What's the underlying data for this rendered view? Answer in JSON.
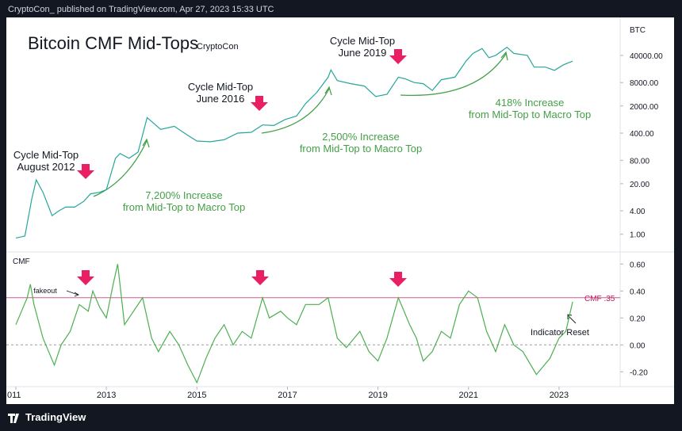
{
  "header": {
    "text": "CryptoCon_ published on TradingView.com, Apr 27, 2023 15:33 UTC"
  },
  "footer": {
    "logo": "TradingView"
  },
  "chart_data": [
    {
      "type": "line",
      "title": "Bitcoin CMF Mid-Tops",
      "subtitle": "CryptoCon",
      "y_label": "BTC",
      "log_scale": true,
      "grid": false,
      "color": "#26a69a",
      "xlim": [
        2010.79,
        2024.35
      ],
      "ylim": [
        0.35,
        380000
      ],
      "yticks": [
        {
          "value": 1,
          "label": "1.00"
        },
        {
          "value": 4,
          "label": "4.00"
        },
        {
          "value": 20,
          "label": "20.00"
        },
        {
          "value": 80,
          "label": "80.00"
        },
        {
          "value": 400,
          "label": "400.00"
        },
        {
          "value": 2000,
          "label": "2000.00"
        },
        {
          "value": 8000,
          "label": "8000.00"
        },
        {
          "value": 40000,
          "label": "40000.00"
        }
      ],
      "x": [
        2011.0,
        2011.2,
        2011.35,
        2011.45,
        2011.6,
        2011.8,
        2011.95,
        2012.1,
        2012.3,
        2012.5,
        2012.65,
        2012.85,
        2013.0,
        2013.2,
        2013.3,
        2013.5,
        2013.7,
        2013.9,
        2014.0,
        2014.2,
        2014.5,
        2014.8,
        2015.0,
        2015.3,
        2015.6,
        2015.9,
        2016.2,
        2016.45,
        2016.7,
        2016.95,
        2017.2,
        2017.4,
        2017.65,
        2017.9,
        2017.96,
        2018.1,
        2018.4,
        2018.7,
        2018.95,
        2019.2,
        2019.45,
        2019.6,
        2019.8,
        2020.0,
        2020.2,
        2020.4,
        2020.7,
        2020.95,
        2021.1,
        2021.3,
        2021.45,
        2021.6,
        2021.85,
        2022.0,
        2022.3,
        2022.45,
        2022.7,
        2022.9,
        2023.1,
        2023.3
      ],
      "values": [
        0.8,
        0.9,
        8,
        25,
        12,
        3,
        4,
        5,
        5,
        7,
        11,
        12,
        14,
        90,
        120,
        90,
        130,
        1000,
        800,
        500,
        600,
        350,
        250,
        240,
        270,
        400,
        420,
        650,
        630,
        900,
        1100,
        2300,
        4500,
        11000,
        17000,
        9000,
        7500,
        6500,
        3500,
        4000,
        11000,
        10000,
        8000,
        7500,
        5000,
        9500,
        11000,
        29000,
        45000,
        60000,
        35000,
        40000,
        65000,
        45000,
        40000,
        20000,
        20000,
        16500,
        23000,
        28500
      ],
      "annotations": [
        {
          "lines": [
            "Cycle Mid-Top",
            "August 2012"
          ],
          "color": "#131722"
        },
        {
          "lines": [
            "7,200% Increase",
            "from Mid-Top to Macro Top"
          ],
          "color": "#43a047"
        },
        {
          "lines": [
            "Cycle Mid-Top",
            "June 2016"
          ],
          "color": "#131722"
        },
        {
          "lines": [
            "2,500% Increase",
            "from Mid-Top to Macro Top"
          ],
          "color": "#43a047"
        },
        {
          "lines": [
            "Cycle Mid-Top",
            "June 2019"
          ],
          "color": "#131722"
        },
        {
          "lines": [
            "418% Increase",
            "from Mid-Top to Macro Top"
          ],
          "color": "#43a047"
        }
      ]
    },
    {
      "type": "line",
      "title": "CMF",
      "grid": false,
      "color": "#4caf50",
      "xlim": [
        2010.79,
        2024.35
      ],
      "ylim": [
        -0.31,
        0.69
      ],
      "yticks": [
        {
          "value": 0.6,
          "label": "0.60"
        },
        {
          "value": 0.4,
          "label": "0.40"
        },
        {
          "value": 0.2,
          "label": "0.20"
        },
        {
          "value": 0,
          "label": "0.00"
        },
        {
          "value": -0.2,
          "label": "-0.20"
        }
      ],
      "xticks": [
        {
          "value": 2011,
          "label": "011"
        },
        2013,
        2015,
        2017,
        2019,
        2021,
        2023
      ],
      "x": [
        2011.0,
        2011.25,
        2011.32,
        2011.4,
        2011.6,
        2011.85,
        2012.0,
        2012.2,
        2012.4,
        2012.6,
        2012.7,
        2012.85,
        2013.0,
        2013.15,
        2013.25,
        2013.4,
        2013.6,
        2013.8,
        2014.0,
        2014.15,
        2014.4,
        2014.6,
        2014.8,
        2015.0,
        2015.2,
        2015.4,
        2015.6,
        2015.8,
        2016.0,
        2016.2,
        2016.45,
        2016.6,
        2016.85,
        2017.0,
        2017.2,
        2017.4,
        2017.7,
        2017.9,
        2018.1,
        2018.3,
        2018.6,
        2018.8,
        2019.0,
        2019.2,
        2019.45,
        2019.7,
        2019.85,
        2020.0,
        2020.2,
        2020.4,
        2020.6,
        2020.8,
        2021.0,
        2021.2,
        2021.4,
        2021.6,
        2021.8,
        2022.0,
        2022.2,
        2022.5,
        2022.8,
        2023.0,
        2023.15,
        2023.3
      ],
      "values": [
        0.15,
        0.35,
        0.45,
        0.3,
        0.05,
        -0.15,
        0.0,
        0.1,
        0.3,
        0.25,
        0.4,
        0.28,
        0.2,
        0.45,
        0.6,
        0.15,
        0.25,
        0.35,
        0.05,
        -0.05,
        0.1,
        0.0,
        -0.15,
        -0.28,
        -0.1,
        0.05,
        0.15,
        0.0,
        0.1,
        0.05,
        0.35,
        0.2,
        0.25,
        0.2,
        0.15,
        0.3,
        0.3,
        0.35,
        0.05,
        -0.02,
        0.1,
        -0.05,
        -0.12,
        0.05,
        0.35,
        0.15,
        0.05,
        -0.12,
        -0.05,
        0.1,
        0.05,
        0.3,
        0.4,
        0.35,
        0.1,
        -0.05,
        0.15,
        0.0,
        -0.05,
        -0.22,
        -0.1,
        0.05,
        0.1,
        0.32
      ],
      "reference_lines": [
        {
          "value": 0.35,
          "label": "CMF .35",
          "color": "#c2185b"
        },
        {
          "value": 0,
          "color": "#9e9e9e"
        }
      ],
      "annotations": [
        {
          "lines": [
            "fakeout"
          ],
          "color": "#131722"
        },
        {
          "lines": [
            "Indicator Reset"
          ],
          "color": "#131722"
        }
      ]
    }
  ]
}
